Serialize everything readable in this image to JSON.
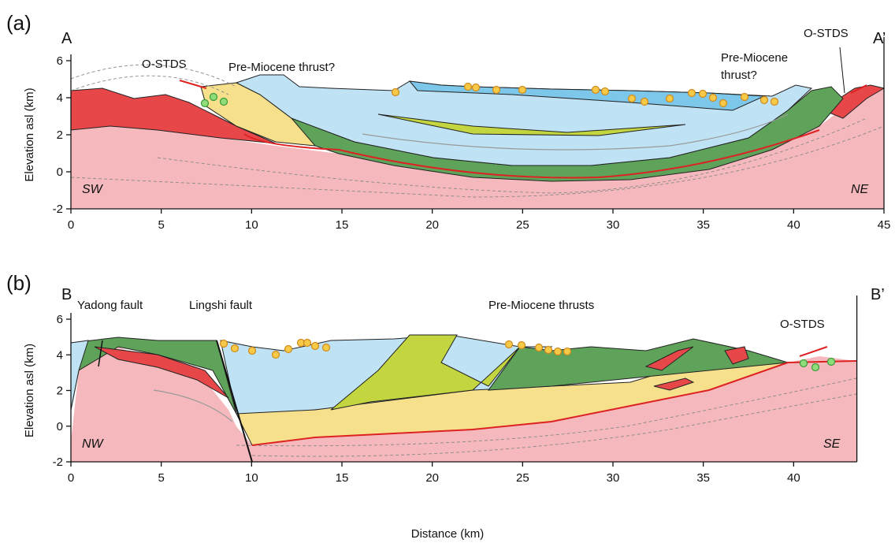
{
  "x_axis_label": "Distance (km)",
  "panels": [
    {
      "label": "(a)",
      "section_start": "A",
      "section_end": "A’",
      "y_axis_label": "Elevation asl (km)",
      "annotations": [
        "O-STDS",
        "Pre-Miocene thrust?",
        "O-STDS"
      ],
      "annotation_lines": [
        "Pre-Miocene",
        "thrust?"
      ],
      "directions": [
        "SW",
        "NE"
      ],
      "xlim": [
        0,
        45
      ],
      "ylim": [
        -2,
        6
      ],
      "xticks": [
        0,
        5,
        10,
        15,
        20,
        25,
        30,
        35,
        40,
        45
      ],
      "yticks": [
        -2,
        0,
        2,
        4,
        6
      ]
    },
    {
      "label": "(b)",
      "section_start": "B",
      "section_end": "B’",
      "y_axis_label": "Elevation asl (km)",
      "annotations": [
        "Yadong fault",
        "Lingshi fault",
        "Pre-Miocene thrusts",
        "O-STDS"
      ],
      "directions": [
        "NW",
        "SE"
      ],
      "xlim": [
        0,
        43.5
      ],
      "ylim": [
        -2,
        6
      ],
      "xticks": [
        0,
        5,
        10,
        15,
        20,
        25,
        30,
        35,
        40
      ],
      "yticks": [
        -2,
        0,
        2,
        4,
        6
      ]
    }
  ]
}
